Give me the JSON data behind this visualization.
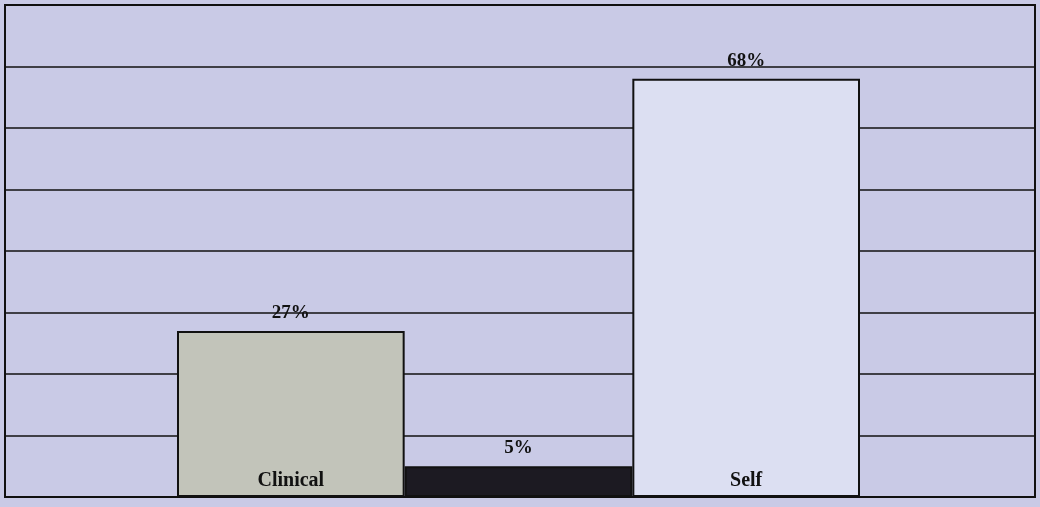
{
  "chart_data": {
    "type": "bar",
    "categories": [
      "Clinical",
      null,
      "Self"
    ],
    "values": [
      27,
      5,
      68
    ],
    "colors": [
      "#c2c4ba",
      "#1c1a22",
      "#dcdff2"
    ],
    "value_labels": [
      "27%",
      "5%",
      "68%"
    ],
    "ylim": [
      0,
      80
    ],
    "yticks": [
      {
        "value": 0,
        "label": null
      },
      {
        "value": 10,
        "label": null
      },
      {
        "value": 20,
        "label": null
      },
      {
        "value": 30,
        "label": null
      },
      {
        "value": 40,
        "label": null
      },
      {
        "value": 50,
        "label": null
      },
      {
        "value": 60,
        "label": null
      },
      {
        "value": 70,
        "label": null
      },
      {
        "value": 80,
        "label": null
      }
    ],
    "grid": "y",
    "tick_labels": "x"
  }
}
